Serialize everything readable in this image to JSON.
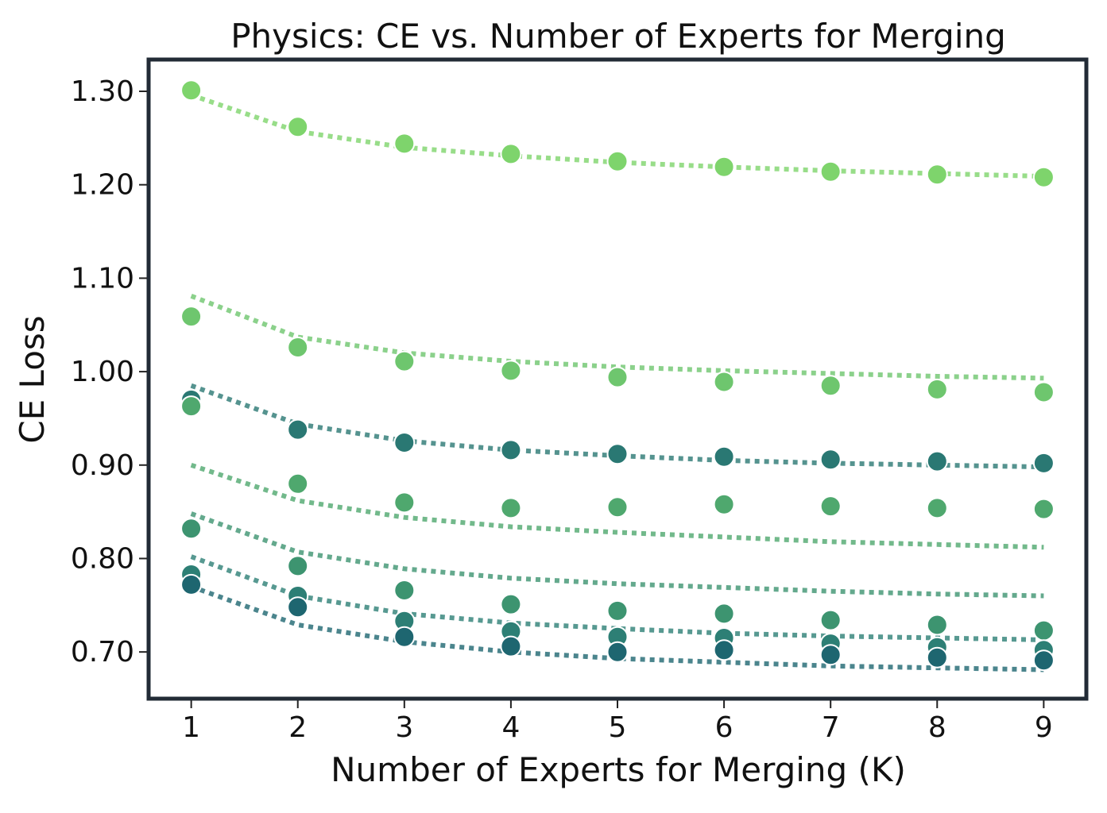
{
  "chart_data": {
    "type": "scatter",
    "title": "Physics: CE vs. Number of Experts for Merging",
    "xlabel": "Number of Experts for Merging (K)",
    "ylabel": "CE Loss",
    "x": [
      1,
      2,
      3,
      4,
      5,
      6,
      7,
      8,
      9
    ],
    "x_ticks": [
      "1",
      "2",
      "3",
      "4",
      "5",
      "6",
      "7",
      "8",
      "9"
    ],
    "y_ticks": [
      "0.70",
      "0.80",
      "0.90",
      "1.00",
      "1.10",
      "1.20",
      "1.30"
    ],
    "xlim": [
      0.6,
      9.4
    ],
    "ylim": [
      0.65,
      1.334
    ],
    "grid": false,
    "legend": "none",
    "frame_color": "#222b36",
    "series": [
      {
        "color": "#7ed46c",
        "values": [
          1.301,
          1.262,
          1.244,
          1.233,
          1.225,
          1.219,
          1.214,
          1.211,
          1.208
        ],
        "fit": [
          1.296,
          1.257,
          1.24,
          1.231,
          1.224,
          1.219,
          1.215,
          1.212,
          1.209
        ]
      },
      {
        "color": "#6ec66e",
        "values": [
          1.059,
          1.026,
          1.011,
          1.001,
          0.994,
          0.989,
          0.985,
          0.981,
          0.978
        ],
        "fit": [
          1.081,
          1.037,
          1.02,
          1.011,
          1.005,
          1.001,
          0.998,
          0.995,
          0.993
        ]
      },
      {
        "color": "#2a7873",
        "values": [
          0.97,
          0.938,
          0.924,
          0.916,
          0.912,
          0.909,
          0.906,
          0.904,
          0.902
        ],
        "fit": [
          0.985,
          0.944,
          0.926,
          0.916,
          0.91,
          0.905,
          0.902,
          0.9,
          0.898
        ]
      },
      {
        "color": "#4fa86e",
        "values": [
          0.963,
          0.88,
          0.86,
          0.854,
          0.855,
          0.858,
          0.856,
          0.854,
          0.853
        ],
        "fit": [
          0.9,
          0.862,
          0.844,
          0.834,
          0.828,
          0.823,
          0.818,
          0.815,
          0.812
        ]
      },
      {
        "color": "#3d9470",
        "values": [
          0.832,
          0.792,
          0.766,
          0.751,
          0.744,
          0.741,
          0.734,
          0.729,
          0.723
        ],
        "fit": [
          0.848,
          0.807,
          0.789,
          0.779,
          0.773,
          0.769,
          0.765,
          0.762,
          0.76
        ]
      },
      {
        "color": "#2d7f75",
        "values": [
          0.783,
          0.76,
          0.733,
          0.722,
          0.716,
          0.715,
          0.709,
          0.705,
          0.702
        ],
        "fit": [
          0.802,
          0.76,
          0.741,
          0.731,
          0.725,
          0.72,
          0.717,
          0.715,
          0.713
        ]
      },
      {
        "color": "#1e6670",
        "values": [
          0.772,
          0.748,
          0.716,
          0.706,
          0.7,
          0.702,
          0.697,
          0.694,
          0.691
        ],
        "fit": [
          0.77,
          0.729,
          0.711,
          0.7,
          0.693,
          0.689,
          0.685,
          0.683,
          0.681
        ]
      }
    ]
  }
}
